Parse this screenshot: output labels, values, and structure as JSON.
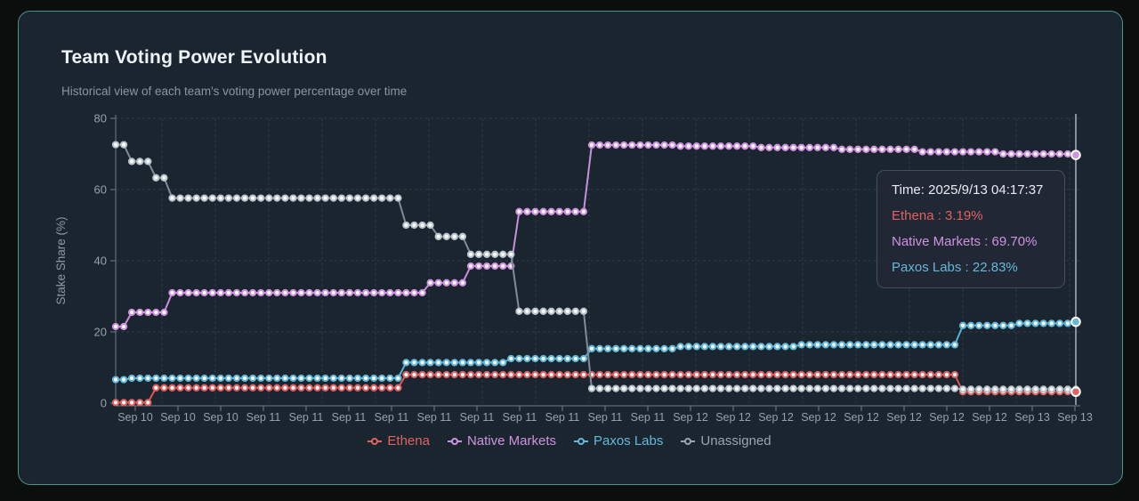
{
  "card": {
    "title": "Team Voting Power Evolution",
    "subtitle": "Historical view of each team's voting power percentage over time"
  },
  "tooltip": {
    "time": "Time: 2025/9/13 04:17:37",
    "entries": [
      {
        "text": "Ethena : 3.19%",
        "color": "#e06262"
      },
      {
        "text": "Native Markets : 69.70%",
        "color": "#cf93e0"
      },
      {
        "text": "Paxos Labs : 22.83%",
        "color": "#64b9da"
      }
    ]
  },
  "legend": {
    "items": [
      {
        "label": "Ethena",
        "color": "#e06262"
      },
      {
        "label": "Native Markets",
        "color": "#cf93e0"
      },
      {
        "label": "Paxos Labs",
        "color": "#64b9da"
      },
      {
        "label": "Unassigned",
        "color": "#9aa4ae"
      }
    ]
  },
  "colors": {
    "card_background": "#1b2530",
    "page_background": "#0a0e0d",
    "card_border": "#4e9187",
    "grid": "#2f3b47",
    "axis": "#6e7a87",
    "tick_text": "#97a1ac",
    "crosshair": "#cfd7de"
  },
  "chart_data": {
    "type": "line",
    "title": "Team Voting Power Evolution",
    "xlabel": "",
    "ylabel": "Stake Share (%)",
    "ylim": [
      0,
      80
    ],
    "y_ticks": [
      0,
      20,
      40,
      60,
      80
    ],
    "x_tick_labels": [
      "Sep 10",
      "Sep 10",
      "Sep 10",
      "Sep 11",
      "Sep 11",
      "Sep 11",
      "Sep 11",
      "Sep 11",
      "Sep 11",
      "Sep 11",
      "Sep 11",
      "Sep 11",
      "Sep 11",
      "Sep 12",
      "Sep 12",
      "Sep 12",
      "Sep 12",
      "Sep 12",
      "Sep 12",
      "Sep 12",
      "Sep 12",
      "Sep 13",
      "Sep 13"
    ],
    "grid": true,
    "legend_position": "bottom",
    "n_points": 120,
    "steps_encoding": "each series: steps = [[point_index, stake_percent], ...]; the value holds for every point until the next listed index; 120 points are evenly spaced from Sep 10 to Sep 13 04:17:37",
    "series": [
      {
        "name": "Ethena",
        "color": "#e06262",
        "line": "#d95757",
        "steps": [
          [
            0,
            0.15
          ],
          [
            5,
            4.3
          ],
          [
            36,
            8.0
          ],
          [
            105,
            3.19
          ]
        ],
        "end_value": 3.19
      },
      {
        "name": "Native Markets",
        "color": "#cf93e0",
        "line": "#c98fdb",
        "steps": [
          [
            0,
            21.5
          ],
          [
            2,
            25.5
          ],
          [
            7,
            31.0
          ],
          [
            39,
            33.8
          ],
          [
            44,
            38.5
          ],
          [
            50,
            53.8
          ],
          [
            59,
            72.5
          ],
          [
            70,
            72.2
          ],
          [
            80,
            71.8
          ],
          [
            90,
            71.3
          ],
          [
            100,
            70.6
          ],
          [
            110,
            70.0
          ],
          [
            119,
            69.7
          ]
        ],
        "end_value": 69.7
      },
      {
        "name": "Paxos Labs",
        "color": "#64b9da",
        "line": "#58b0d4",
        "steps": [
          [
            0,
            6.6
          ],
          [
            2,
            7.0
          ],
          [
            36,
            11.4
          ],
          [
            49,
            12.5
          ],
          [
            59,
            15.3
          ],
          [
            70,
            15.9
          ],
          [
            85,
            16.4
          ],
          [
            105,
            21.8
          ],
          [
            112,
            22.4
          ],
          [
            119,
            22.83
          ]
        ],
        "end_value": 22.83
      },
      {
        "name": "Unassigned",
        "color": "#b9c4cd",
        "line": "#7f8c96",
        "steps": [
          [
            0,
            72.6
          ],
          [
            2,
            67.9
          ],
          [
            5,
            63.3
          ],
          [
            7,
            57.6
          ],
          [
            36,
            50.0
          ],
          [
            40,
            46.8
          ],
          [
            44,
            41.8
          ],
          [
            50,
            25.8
          ],
          [
            59,
            4.1
          ],
          [
            105,
            3.9
          ]
        ],
        "end_value": null
      }
    ]
  }
}
